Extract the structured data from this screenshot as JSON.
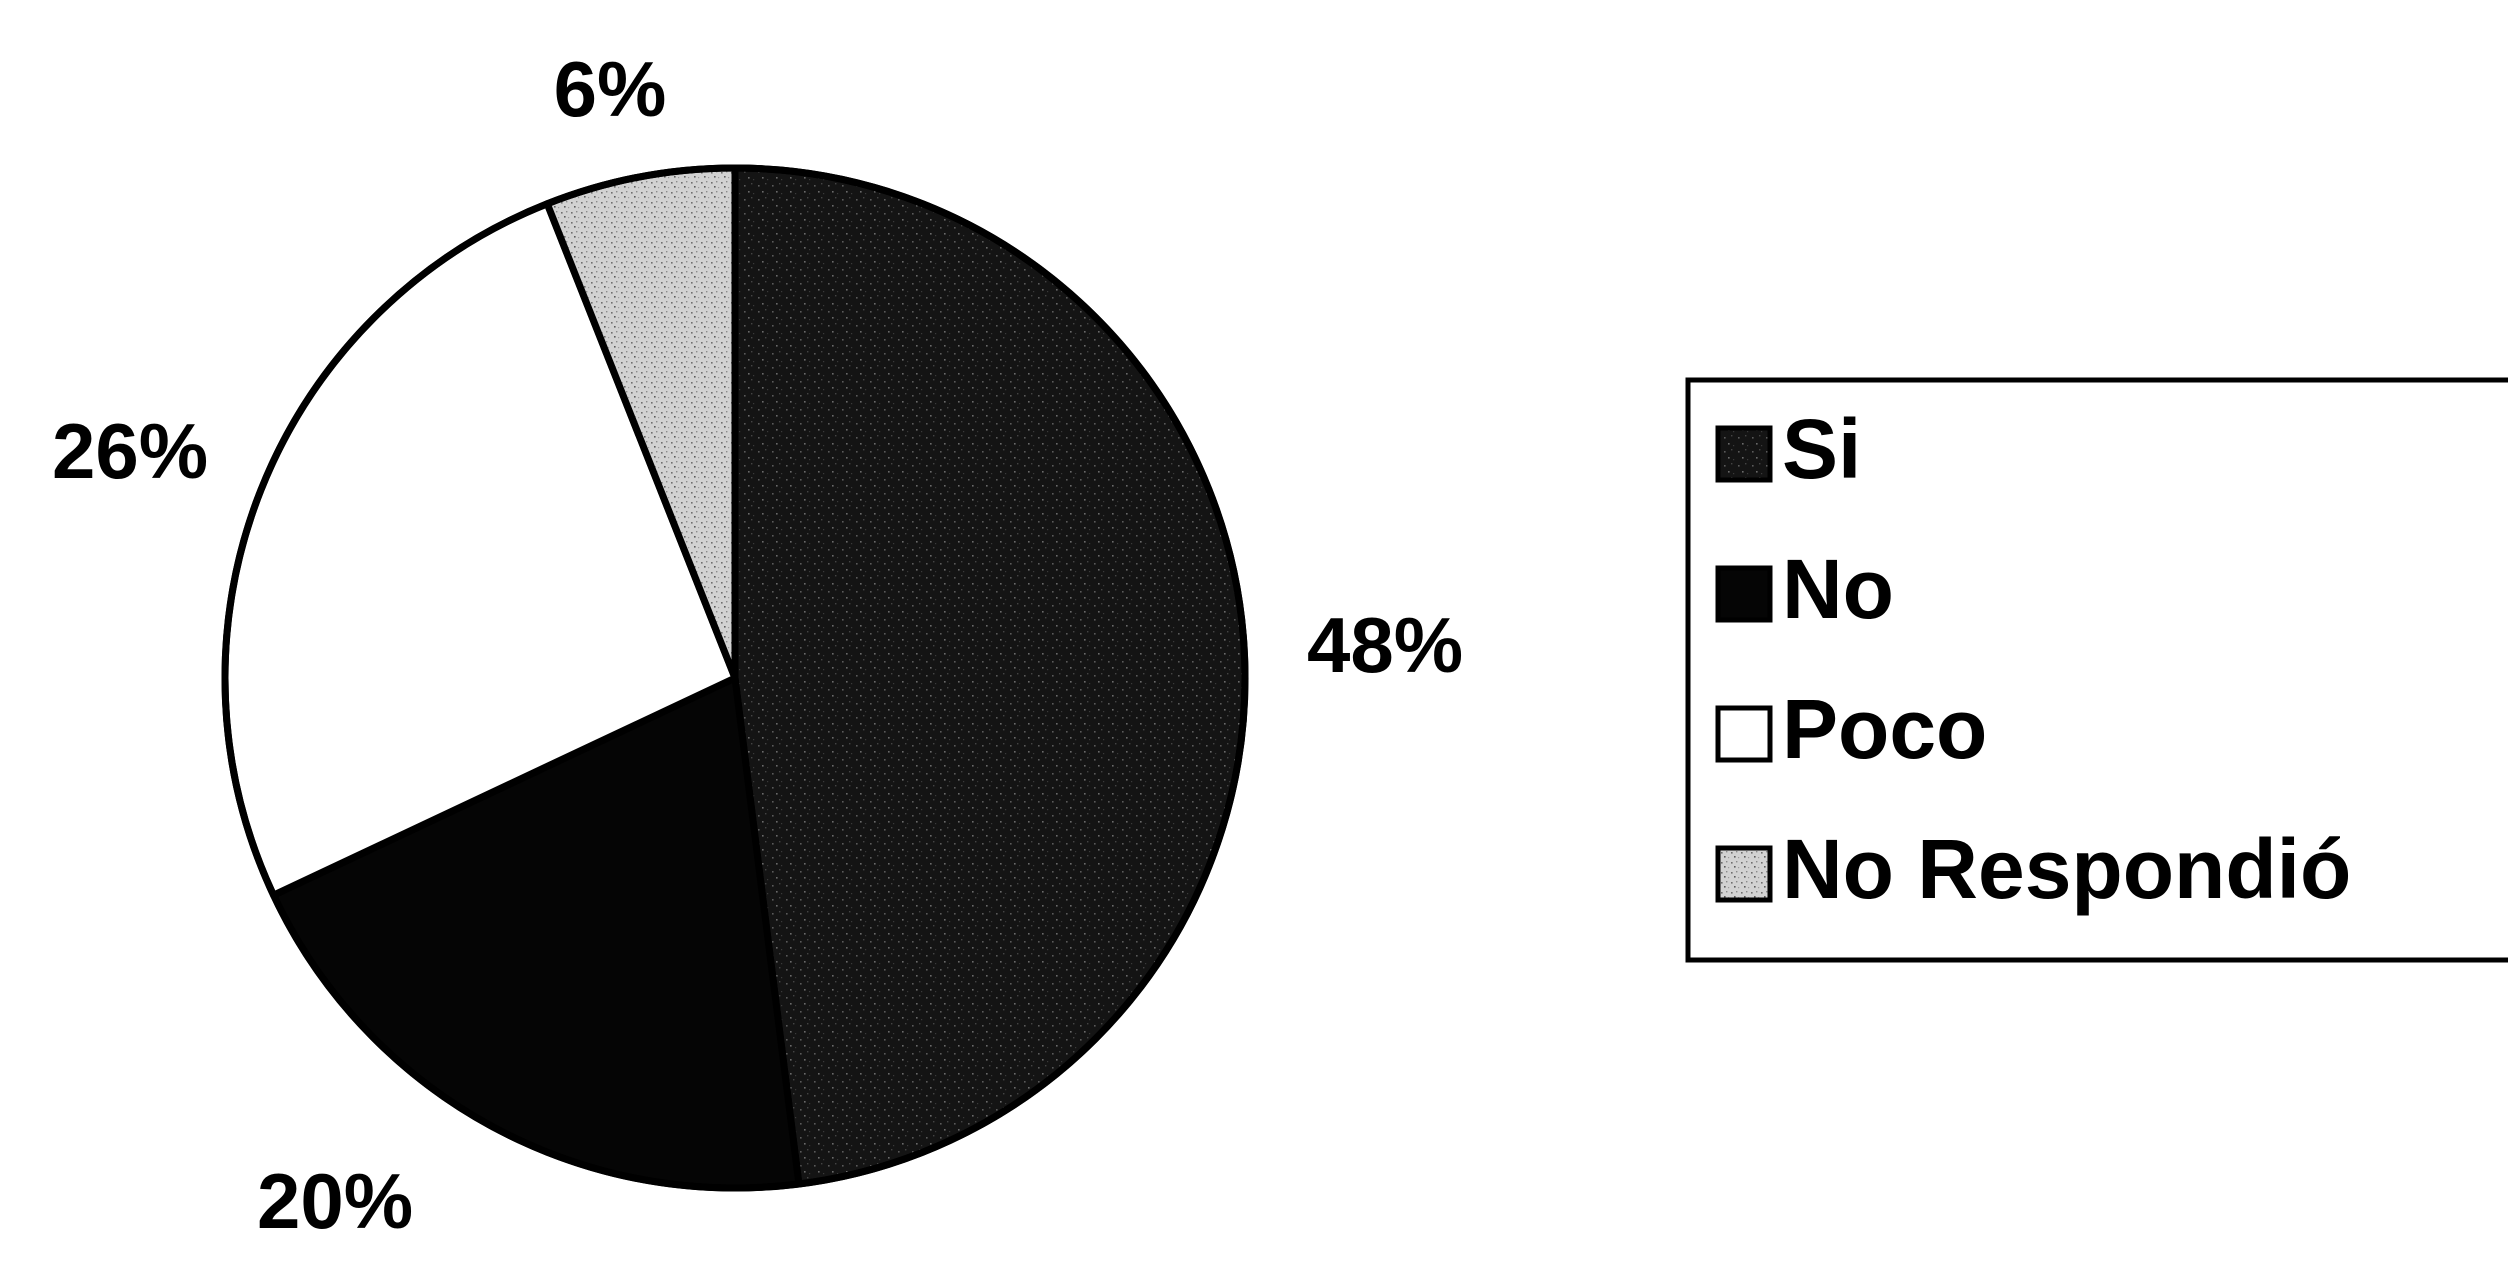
{
  "chart_data": {
    "type": "pie",
    "title": "",
    "slices": [
      {
        "label": "Si",
        "value": 48,
        "display": "48%",
        "color": "#141414",
        "pattern": "speckle-dark"
      },
      {
        "label": "No",
        "value": 20,
        "display": "20%",
        "color": "#050505",
        "pattern": "solid"
      },
      {
        "label": "Poco",
        "value": 26,
        "display": "26%",
        "color": "#ffffff",
        "pattern": "solid"
      },
      {
        "label": "No Respondió",
        "value": 6,
        "display": "6%",
        "color": "#c8c8c8",
        "pattern": "speckle-light"
      }
    ],
    "legend": {
      "position": "right",
      "items": [
        "Si",
        "No",
        "Poco",
        "No Respondió"
      ]
    },
    "start_angle_deg": 0,
    "direction": "clockwise",
    "grid": false
  }
}
